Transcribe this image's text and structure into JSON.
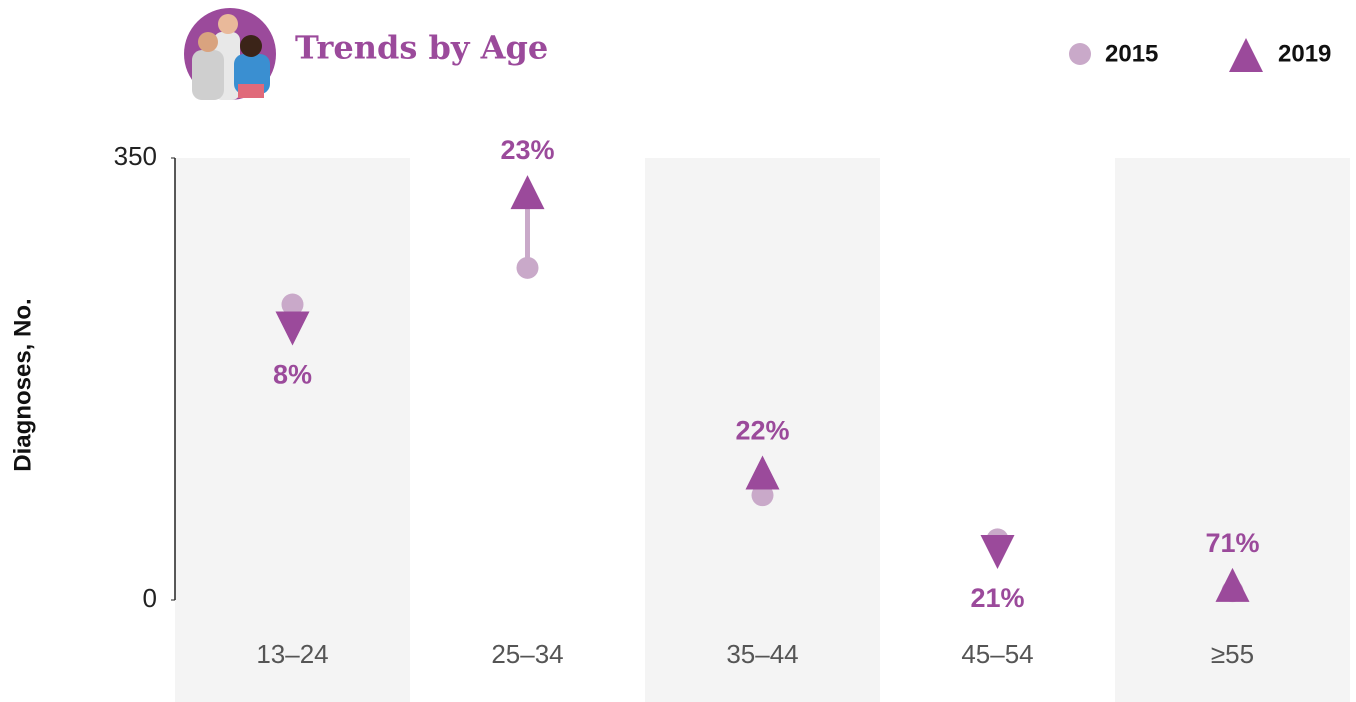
{
  "chart_data": {
    "type": "dumbbell",
    "title": "Trends by Age",
    "y_label": "Diagnoses, No.",
    "categories": [
      "13–24",
      "25–34",
      "35–44",
      "45–54",
      "≥55"
    ],
    "series": [
      {
        "name": "2015",
        "color": "#c9a9c9",
        "values": [
          234,
          263,
          83,
          48,
          7
        ]
      },
      {
        "name": "2019",
        "color": "#9b4a9b",
        "values": [
          215,
          323,
          101,
          38,
          12
        ]
      }
    ],
    "change_labels": [
      "8%",
      "23%",
      "22%",
      "21%",
      "71%"
    ],
    "ylim": [
      0,
      350
    ],
    "yticks": [
      0,
      350
    ],
    "band_color": "#f4f4f4"
  }
}
